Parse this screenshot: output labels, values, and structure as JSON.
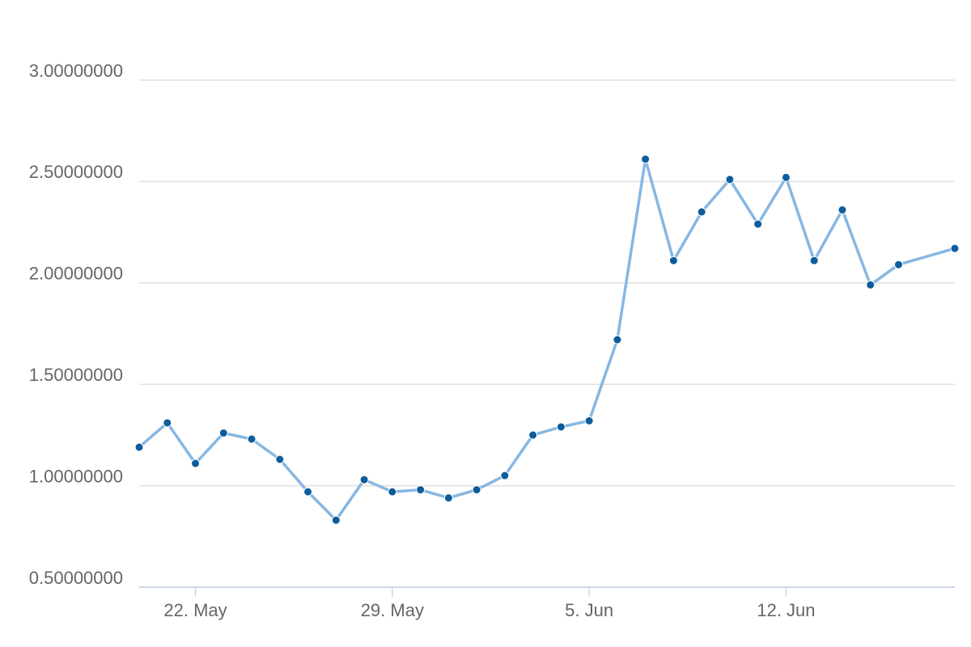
{
  "chart_data": {
    "type": "line",
    "x": [
      "20. May",
      "21. May",
      "22. May",
      "23. May",
      "24. May",
      "25. May",
      "26. May",
      "27. May",
      "28. May",
      "29. May",
      "30. May",
      "31. May",
      "1. Jun",
      "2. Jun",
      "3. Jun",
      "4. Jun",
      "5. Jun",
      "6. Jun",
      "7. Jun",
      "8. Jun",
      "9. Jun",
      "10. Jun",
      "11. Jun",
      "12. Jun",
      "13. Jun",
      "14. Jun",
      "15. Jun",
      "16. Jun",
      "18. Jun"
    ],
    "series": [
      {
        "color": "#86b7e3",
        "marker_color": "#0d5c9b",
        "values": [
          1.19,
          1.31,
          1.11,
          1.26,
          1.23,
          1.13,
          0.97,
          0.83,
          1.03,
          0.97,
          0.98,
          0.94,
          0.98,
          1.05,
          1.25,
          1.29,
          1.32,
          1.72,
          2.61,
          2.11,
          2.35,
          2.51,
          2.29,
          2.52,
          2.11,
          2.36,
          1.99,
          2.09,
          2.17
        ]
      }
    ],
    "xlim": [
      "20. May",
      "18. Jun"
    ],
    "xticks": [
      "22. May",
      "29. May",
      "5. Jun",
      "12. Jun"
    ],
    "ylim": [
      0.5,
      3
    ],
    "yticks": [
      {
        "value": 0.5,
        "label": "0.50000000"
      },
      {
        "value": 1,
        "label": "1.00000000"
      },
      {
        "value": 1.5,
        "label": "1.50000000"
      },
      {
        "value": 2,
        "label": "2.00000000"
      },
      {
        "value": 2.5,
        "label": "2.50000000"
      },
      {
        "value": 3,
        "label": "3.00000000"
      }
    ],
    "grid": true
  }
}
